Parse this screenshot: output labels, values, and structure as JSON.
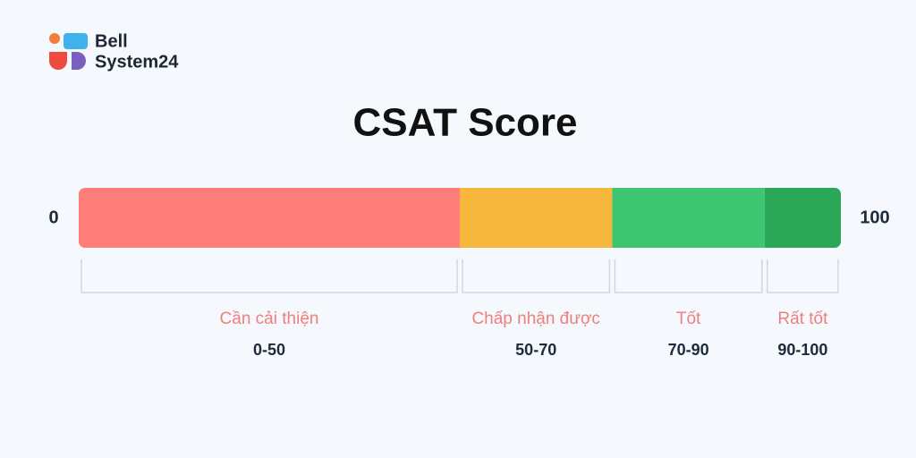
{
  "logo": {
    "line1": "Bell",
    "line2": "System24"
  },
  "title": "CSAT Score",
  "scale": {
    "min": 0,
    "max": 100
  },
  "segments": [
    {
      "name": "Cần cải thiện",
      "range": "0-50",
      "from": 0,
      "to": 50,
      "color": "#ff7d7b"
    },
    {
      "name": "Chấp nhận được",
      "range": "50-70",
      "from": 50,
      "to": 70,
      "color": "#f7b73c"
    },
    {
      "name": "Tốt",
      "range": "70-90",
      "from": 70,
      "to": 90,
      "color": "#3ec571"
    },
    {
      "name": "Rất tốt",
      "range": "90-100",
      "from": 90,
      "to": 100,
      "color": "#2aa857"
    }
  ]
}
